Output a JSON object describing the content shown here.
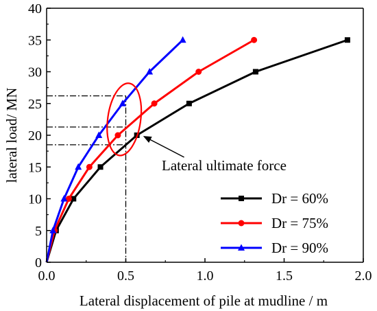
{
  "chart_data": {
    "type": "line",
    "xlabel": "Lateral displacement of pile at mudline / m",
    "ylabel": "lateral load/ MN",
    "xlim": [
      0,
      2.0
    ],
    "ylim": [
      0,
      40
    ],
    "xticks": [
      "0.0",
      "0.5",
      "1.0",
      "1.5",
      "2.0"
    ],
    "yticks": [
      "0",
      "5",
      "10",
      "15",
      "20",
      "25",
      "30",
      "35",
      "40"
    ],
    "grid": false,
    "legend_position": "bottom-right",
    "series": [
      {
        "name": "Dr = 60%",
        "color": "#000000",
        "marker": "square",
        "x": [
          0,
          0.06,
          0.17,
          0.34,
          0.57,
          0.9,
          1.32,
          1.9
        ],
        "y": [
          0,
          5,
          10,
          15,
          20,
          25,
          30,
          35
        ]
      },
      {
        "name": "Dr = 75%",
        "color": "#ff0000",
        "marker": "circle",
        "x": [
          0,
          0.05,
          0.14,
          0.27,
          0.45,
          0.68,
          0.96,
          1.31
        ],
        "y": [
          0,
          5,
          10,
          15,
          20,
          25,
          30,
          35
        ]
      },
      {
        "name": "Dr = 90%",
        "color": "#0000ff",
        "marker": "triangle",
        "x": [
          0,
          0.04,
          0.11,
          0.2,
          0.33,
          0.48,
          0.65,
          0.86
        ],
        "y": [
          0,
          5,
          10,
          15,
          20,
          25,
          30,
          35
        ]
      }
    ],
    "reference_lines": {
      "x": 0.5,
      "y_values": [
        26.2,
        21.3,
        18.5
      ]
    },
    "annotation": {
      "text": "Lateral ultimate force",
      "target_x": 0.6,
      "target_y": 20,
      "ellipse_center_x": 0.49,
      "ellipse_center_y": 22.5
    }
  }
}
